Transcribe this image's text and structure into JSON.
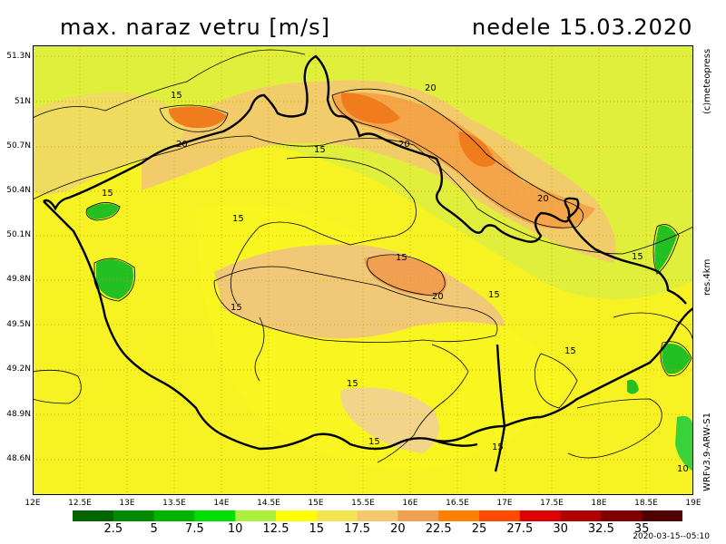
{
  "title": "max. naraz vetru [m/s]",
  "date": "nedele 15.03.2020",
  "latitude_labels": [
    "51.3N",
    "51N",
    "50.7N",
    "50.4N",
    "50.1N",
    "49.8N",
    "49.5N",
    "49.2N",
    "48.9N",
    "48.6N"
  ],
  "longitude_labels": [
    "12E",
    "12.5E",
    "13E",
    "13.5E",
    "14E",
    "14.5E",
    "15E",
    "15.5E",
    "16E",
    "16.5E",
    "17E",
    "17.5E",
    "18E",
    "18.5E",
    "19E"
  ],
  "side_labels": {
    "copyright": "(c)meteopress",
    "resolution": "res.4km",
    "model": "WRFv3.9-ARW-S1"
  },
  "legend": {
    "labels": [
      "2.5",
      "5",
      "7.5",
      "10",
      "12.5",
      "15",
      "17.5",
      "20",
      "22.5",
      "25",
      "27.5",
      "30",
      "32.5",
      "35"
    ],
    "colors": [
      "#006400",
      "#008c00",
      "#00b400",
      "#00e000",
      "#aaf03c",
      "#ffff00",
      "#f2e650",
      "#f5c870",
      "#f0a050",
      "#ff8000",
      "#ff4a00",
      "#e00000",
      "#b00000",
      "#800000",
      "#500000"
    ]
  },
  "contour_labels": [
    "15",
    "20",
    "20",
    "15",
    "20",
    "15",
    "15",
    "15",
    "20",
    "15",
    "15",
    "20",
    "15",
    "15",
    "15",
    "15",
    "15",
    "10"
  ],
  "timestamp": "2020-03-15--05:10"
}
